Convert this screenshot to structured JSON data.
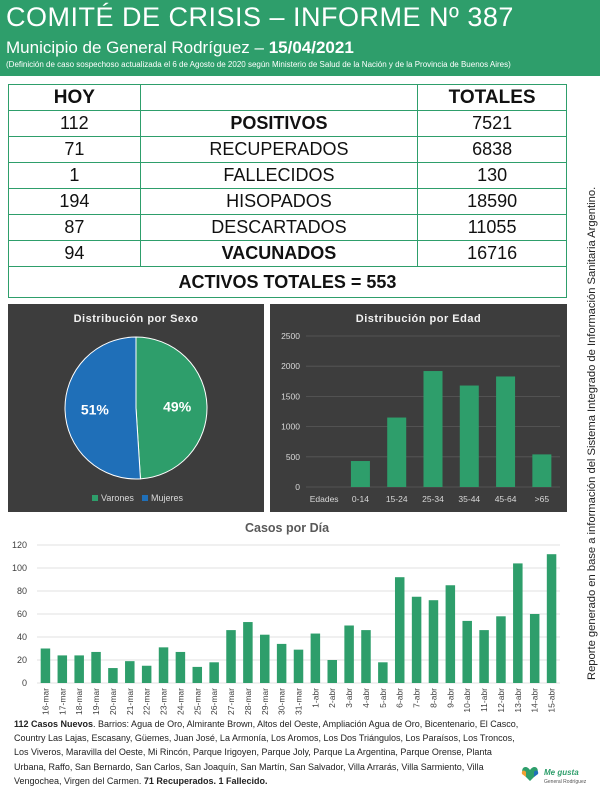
{
  "header": {
    "title": "COMITÉ DE CRISIS – INFORME Nº 387",
    "subtitle_prefix": "Municipio de General Rodríguez – ",
    "subtitle_date": "15/04/2021",
    "note": "(Definición de caso sospechoso actualizada el 6 de Agosto de 2020 según Ministerio de Salud de la Nación y de la Provincia de Buenos Aires)"
  },
  "stats": {
    "col_today": "HOY",
    "col_totals": "TOTALES",
    "rows": [
      {
        "today": "112",
        "label": "POSITIVOS",
        "total": "7521"
      },
      {
        "today": "71",
        "label": "RECUPERADOS",
        "total": "6838"
      },
      {
        "today": "1",
        "label": "FALLECIDOS",
        "total": "130"
      },
      {
        "today": "194",
        "label": "HISOPADOS",
        "total": "18590"
      },
      {
        "today": "87",
        "label": "DESCARTADOS",
        "total": "11055"
      },
      {
        "today": "94",
        "label": "VACUNADOS",
        "total": "16716"
      }
    ],
    "activos": "ACTIVOS TOTALES = 553"
  },
  "colors": {
    "green": "#2e9e6b",
    "blue": "#1f6fb8",
    "orange": "#f0a032",
    "panel": "#3d3d3d"
  },
  "chart_data": [
    {
      "type": "pie",
      "title": "Distribución por Sexo",
      "labels": [
        "Varones",
        "Mujeres"
      ],
      "values": [
        49,
        51
      ],
      "value_labels": [
        "49%",
        "51%"
      ],
      "colors": [
        "#2e9e6b",
        "#1f6fb8"
      ],
      "legend": "bottom"
    },
    {
      "type": "bar",
      "title": "Distribución por Edad",
      "xlabel": "Edades",
      "categories": [
        "0-14",
        "15-24",
        "25-34",
        "35-44",
        "45-64",
        ">65"
      ],
      "values": [
        430,
        1150,
        1920,
        1680,
        1830,
        540
      ],
      "ylim": [
        0,
        2500
      ],
      "yticks": [
        0,
        500,
        1000,
        1500,
        2000,
        2500
      ],
      "color": "#2e9e6b",
      "grid": true
    },
    {
      "type": "bar",
      "title": "Casos por Día",
      "categories": [
        "16-mar",
        "17-mar",
        "18-mar",
        "19-mar",
        "20-mar",
        "21-mar",
        "22-mar",
        "23-mar",
        "24-mar",
        "25-mar",
        "26-mar",
        "27-mar",
        "28-mar",
        "29-mar",
        "30-mar",
        "31-mar",
        "1-abr",
        "2-abr",
        "3-abr",
        "4-abr",
        "5-abr",
        "6-abr",
        "7-abr",
        "8-abr",
        "9-abr",
        "10-abr",
        "11-abr",
        "12-abr",
        "13-abr",
        "14-abr",
        "15-abr"
      ],
      "values": [
        30,
        24,
        24,
        27,
        13,
        19,
        15,
        31,
        27,
        14,
        18,
        46,
        53,
        42,
        34,
        29,
        43,
        20,
        50,
        46,
        18,
        92,
        75,
        72,
        85,
        54,
        46,
        58,
        104,
        60,
        112
      ],
      "ylim": [
        0,
        120
      ],
      "yticks": [
        0,
        20,
        40,
        60,
        80,
        100,
        120
      ],
      "color": "#2e9e6b",
      "grid": true
    }
  ],
  "footer": {
    "lead": "112 Casos Nuevos",
    "body": ". Barrios: Agua de Oro, Almirante Brown, Altos del Oeste, Ampliación Agua de Oro, Bicentenario, El Casco, Country Las Lajas, Escasany, Güemes, Juan José, La Armonía, Los Aromos, Los Dos Triángulos, Los Paraísos, Los Troncos, Los Viveros, Maravilla del Oeste, Mi Rincón, Parque Irigoyen, Parque Joly, Parque La Argentina, Parque Orense, Planta Urbana, Raffo, San Bernardo, San Carlos, San Joaquín, San Martín, San Salvador, Villa Arrarás, Villa Sarmiento, Villa Vengochea, Virgen del Carmen. ",
    "tail": "71 Recuperados. 1 Fallecido."
  },
  "side_note": "Reporte generado en base a información del Sistema Integrado de Información Sanitaria Argentino.",
  "logo": {
    "line1": "Me gusta",
    "line2": "General Rodríguez"
  }
}
